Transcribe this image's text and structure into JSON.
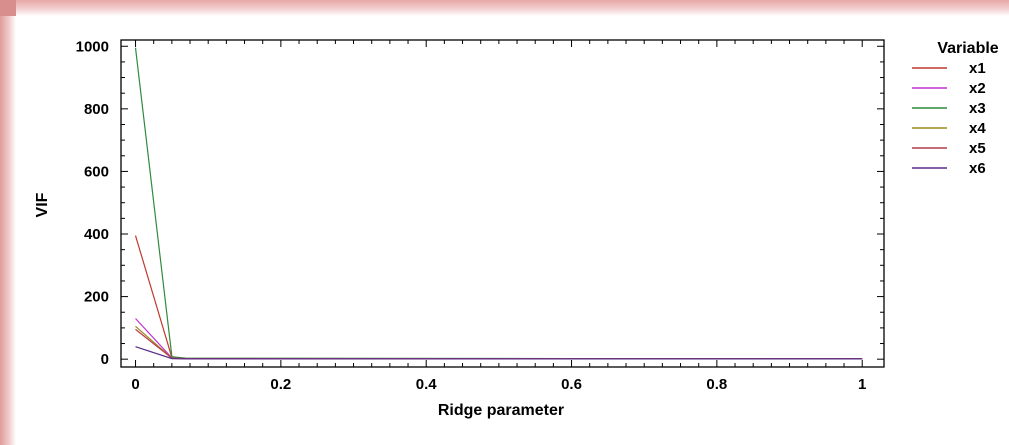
{
  "chart_data": {
    "type": "line",
    "title": "",
    "xlabel": "Ridge parameter",
    "ylabel": "VIF",
    "xlim": [
      -0.02,
      1.03
    ],
    "ylim": [
      -25,
      1020
    ],
    "x_ticks": [
      0,
      0.2,
      0.4,
      0.6,
      0.8,
      1
    ],
    "x_tick_labels": [
      "0",
      "0.2",
      "0.4",
      "0.6",
      "0.8",
      "1"
    ],
    "y_ticks": [
      0,
      200,
      400,
      600,
      800,
      1000
    ],
    "y_tick_labels": [
      "0",
      "200",
      "400",
      "600",
      "800",
      "1000"
    ],
    "grid": false,
    "legend": {
      "title": "Variable",
      "placement": "right"
    },
    "x": [
      0,
      0.05,
      0.07,
      1
    ],
    "series": [
      {
        "name": "x1",
        "color": "#c0392b",
        "values": [
          395,
          5,
          2,
          1
        ]
      },
      {
        "name": "x2",
        "color": "#c030d0",
        "values": [
          130,
          4,
          2,
          1
        ]
      },
      {
        "name": "x3",
        "color": "#2e8b3c",
        "values": [
          995,
          8,
          3,
          1
        ]
      },
      {
        "name": "x4",
        "color": "#9a8a18",
        "values": [
          105,
          3,
          2,
          1
        ]
      },
      {
        "name": "x5",
        "color": "#b83c4a",
        "values": [
          95,
          3,
          2,
          1
        ]
      },
      {
        "name": "x6",
        "color": "#5a2a8a",
        "values": [
          40,
          2,
          1,
          1
        ]
      }
    ]
  }
}
